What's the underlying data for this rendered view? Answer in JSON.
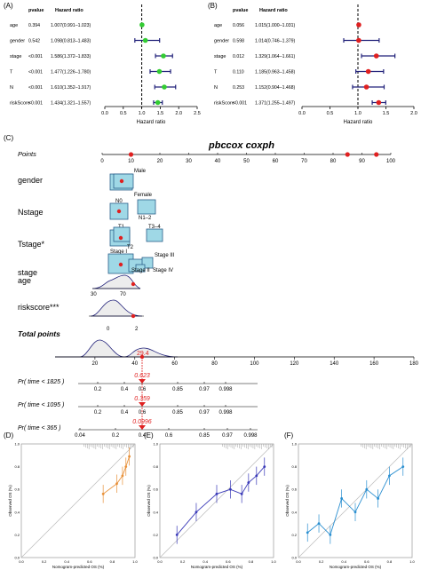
{
  "panels": {
    "A": "(A)",
    "B": "(B)",
    "C": "(C)",
    "D": "(D)",
    "E": "(E)",
    "F": "(F)"
  },
  "forest_header": {
    "pvalue": "pvalue",
    "hazard_ratio": "Hazard ratio"
  },
  "forest_xlabel": "Hazard ratio",
  "chart_data": [
    {
      "type": "scatter",
      "panel": "A",
      "xlabel": "Hazard ratio",
      "xlim": [
        0,
        2.5
      ],
      "xticks": [
        "0.0",
        "0.5",
        "1.0",
        "1.5",
        "2.0",
        "2.5"
      ],
      "rows": [
        {
          "label": "age",
          "pvalue": "0.394",
          "hr_text": "1.007(0.991–1.023)",
          "hr": 1.007,
          "lo": 0.991,
          "hi": 1.023
        },
        {
          "label": "gender",
          "pvalue": "0.542",
          "hr_text": "1.098(0.813–1.483)",
          "hr": 1.098,
          "lo": 0.813,
          "hi": 1.483
        },
        {
          "label": "stage",
          "pvalue": "<0.001",
          "hr_text": "1.586(1.372–1.833)",
          "hr": 1.586,
          "lo": 1.372,
          "hi": 1.833
        },
        {
          "label": "T",
          "pvalue": "<0.001",
          "hr_text": "1.477(1.226–1.780)",
          "hr": 1.477,
          "lo": 1.226,
          "hi": 1.78
        },
        {
          "label": "N",
          "pvalue": "<0.001",
          "hr_text": "1.610(1.352–1.917)",
          "hr": 1.61,
          "lo": 1.352,
          "hi": 1.917
        },
        {
          "label": "riskScore",
          "pvalue": "<0.001",
          "hr_text": "1.434(1.321–1.557)",
          "hr": 1.434,
          "lo": 1.321,
          "hi": 1.557
        }
      ],
      "point_color": "#33cc33"
    },
    {
      "type": "scatter",
      "panel": "B",
      "xlabel": "Hazard ratio",
      "xlim": [
        0,
        2.0
      ],
      "xticks": [
        "0.0",
        "0.5",
        "1.0",
        "1.5",
        "2.0"
      ],
      "rows": [
        {
          "label": "age",
          "pvalue": "0.056",
          "hr_text": "1.015(1.000–1.031)",
          "hr": 1.015,
          "lo": 1.0,
          "hi": 1.031
        },
        {
          "label": "gender",
          "pvalue": "0.598",
          "hr_text": "1.014(0.746–1.379)",
          "hr": 1.014,
          "lo": 0.746,
          "hi": 1.379
        },
        {
          "label": "stage",
          "pvalue": "0.012",
          "hr_text": "1.329(1.064–1.661)",
          "hr": 1.329,
          "lo": 1.064,
          "hi": 1.661
        },
        {
          "label": "T",
          "pvalue": "0.110",
          "hr_text": "1.185(0.963–1.458)",
          "hr": 1.185,
          "lo": 0.963,
          "hi": 1.458
        },
        {
          "label": "N",
          "pvalue": "0.253",
          "hr_text": "1.152(0.904–1.468)",
          "hr": 1.152,
          "lo": 0.904,
          "hi": 1.468
        },
        {
          "label": "riskScore",
          "pvalue": "<0.001",
          "hr_text": "1.371(1.255–1.497)",
          "hr": 1.371,
          "lo": 1.255,
          "hi": 1.497
        }
      ],
      "point_color": "#e02020"
    }
  ],
  "nomogram": {
    "title": "pbccox coxph",
    "points_label": "Points",
    "points_ticks": [
      "0",
      "10",
      "20",
      "30",
      "40",
      "50",
      "60",
      "70",
      "80",
      "90",
      "100"
    ],
    "vars": [
      {
        "name": "gender",
        "levels": [
          "Male",
          "Female"
        ]
      },
      {
        "name": "Nstage",
        "levels": [
          "N0",
          "N1–2"
        ]
      },
      {
        "name": "Tstage*",
        "levels": [
          "T1",
          "T2",
          "T3–4"
        ]
      },
      {
        "name": "stage",
        "levels": [
          "Stage I",
          "Stage II",
          "Stage III",
          "Stage IV"
        ]
      },
      {
        "name": "age",
        "ticks": [
          "30",
          "70"
        ]
      },
      {
        "name": "riskscore***",
        "ticks": [
          "0",
          "2"
        ]
      }
    ],
    "total_label": "Total points",
    "total_ticks": [
      "20",
      "40",
      "60",
      "80",
      "100",
      "120",
      "140",
      "160",
      "180"
    ],
    "total_value": "29.4",
    "pr_rows": [
      {
        "label": "Pr( time < 1825 )",
        "value": "0.623",
        "ticks": [
          "0.2",
          "0.4",
          "0.6",
          "0.85",
          "0.97",
          "0.998"
        ]
      },
      {
        "label": "Pr( time < 1095 )",
        "value": "0.359",
        "ticks": [
          "0.2",
          "0.4",
          "0.6",
          "0.85",
          "0.97",
          "0.998"
        ]
      },
      {
        "label": "Pr( time < 365 )",
        "value": "0.0996",
        "ticks": [
          "0.04",
          "0.2",
          "0.4",
          "0.6",
          "0.85",
          "0.97",
          "0.998"
        ]
      }
    ]
  },
  "calibration": {
    "xlabel": "Nomogram-predicted OS (%)",
    "ylabel": "Observed OS (%)",
    "xticks": [
      "0.0",
      "0.2",
      "0.4",
      "0.6",
      "0.8",
      "1.0"
    ],
    "yticks": [
      "0.0",
      "0.2",
      "0.4",
      "0.6",
      "0.8",
      "1.0"
    ],
    "plots": [
      {
        "panel": "D",
        "color": "#e8913a",
        "points": [
          [
            0.72,
            0.56
          ],
          [
            0.84,
            0.65
          ],
          [
            0.89,
            0.72
          ],
          [
            0.92,
            0.8
          ],
          [
            0.95,
            0.89
          ]
        ]
      },
      {
        "panel": "E",
        "color": "#3a3ab8",
        "points": [
          [
            0.15,
            0.2
          ],
          [
            0.32,
            0.4
          ],
          [
            0.5,
            0.56
          ],
          [
            0.62,
            0.6
          ],
          [
            0.72,
            0.56
          ],
          [
            0.78,
            0.66
          ],
          [
            0.85,
            0.72
          ],
          [
            0.92,
            0.8
          ]
        ]
      },
      {
        "panel": "F",
        "color": "#2a8fd0",
        "points": [
          [
            0.08,
            0.22
          ],
          [
            0.18,
            0.3
          ],
          [
            0.28,
            0.2
          ],
          [
            0.38,
            0.52
          ],
          [
            0.5,
            0.4
          ],
          [
            0.6,
            0.6
          ],
          [
            0.7,
            0.52
          ],
          [
            0.8,
            0.72
          ],
          [
            0.92,
            0.8
          ]
        ]
      }
    ]
  }
}
